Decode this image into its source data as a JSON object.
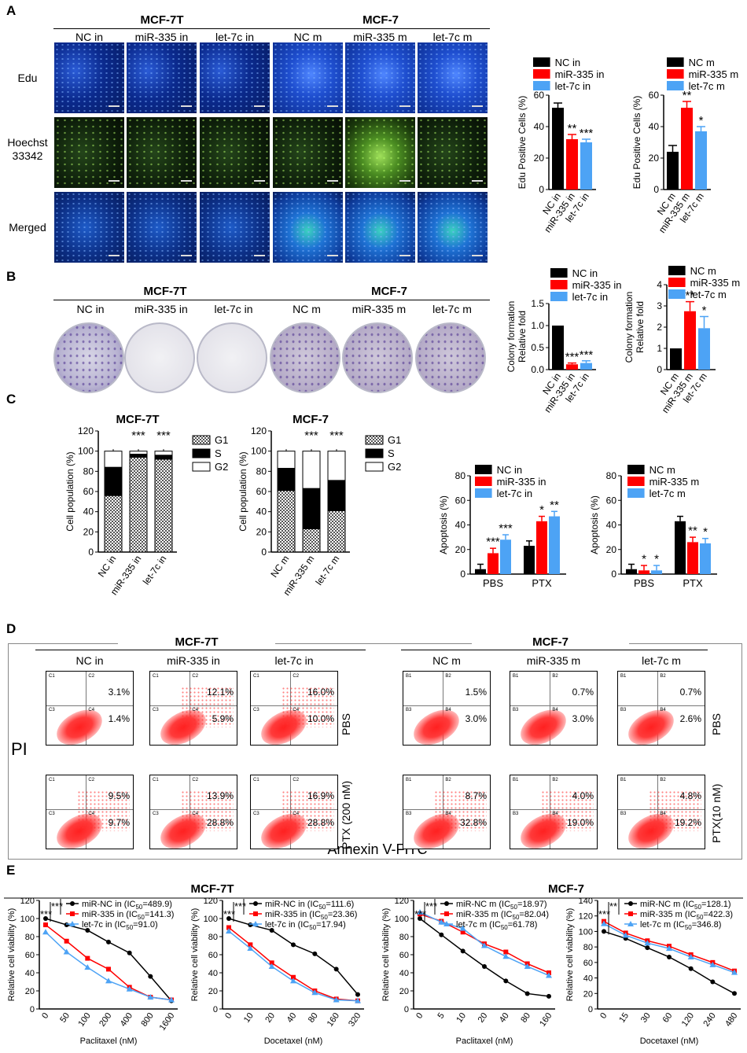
{
  "panels": {
    "A": "A",
    "B": "B",
    "C": "C",
    "D": "D",
    "E": "E"
  },
  "groups": {
    "mcf7t": "MCF-7T",
    "mcf7": "MCF-7"
  },
  "cols_in": [
    "NC in",
    "miR-335 in",
    "let-7c in"
  ],
  "cols_m": [
    "NC m",
    "miR-335 m",
    "let-7c m"
  ],
  "rowsA": [
    "Edu",
    "Hoechst\n33342",
    "Merged"
  ],
  "legend_in": [
    "NC in",
    "miR-335 in",
    "let-7c in"
  ],
  "legend_m": [
    "NC m",
    "miR-335 m",
    "let-7c m"
  ],
  "colors": {
    "black": "#000000",
    "red": "#ff0000",
    "blue": "#4da3f5"
  },
  "chart_data": [
    {
      "type": "bar",
      "title": "",
      "ylabel": "Edu Positive Cells (%)",
      "categories": [
        "NC in",
        "miR-335 in",
        "let-7c in"
      ],
      "values": [
        52,
        32,
        30
      ],
      "errors": [
        3,
        3,
        2
      ],
      "sig": [
        "",
        "**",
        "***"
      ],
      "ylim": [
        0,
        60
      ],
      "yticks": [
        0,
        20,
        40,
        60
      ]
    },
    {
      "type": "bar",
      "title": "",
      "ylabel": "Edu Positive Cells (%)",
      "categories": [
        "NC m",
        "miR-335 m",
        "let-7c m"
      ],
      "values": [
        24,
        52,
        37
      ],
      "errors": [
        4,
        4,
        3
      ],
      "sig": [
        "",
        "**",
        "*"
      ],
      "ylim": [
        0,
        60
      ],
      "yticks": [
        0,
        20,
        40,
        60
      ]
    },
    {
      "type": "bar",
      "title": "",
      "ylabel": "Colony formation\nRelative fold",
      "categories": [
        "NC in",
        "miR-335 in",
        "let-7c in"
      ],
      "values": [
        1.0,
        0.12,
        0.15
      ],
      "errors": [
        0,
        0.03,
        0.05
      ],
      "sig": [
        "",
        "***",
        "***"
      ],
      "ylim": [
        0,
        1.5
      ],
      "yticks": [
        "0.0",
        "0.5",
        "1.0",
        "1.5"
      ]
    },
    {
      "type": "bar",
      "title": "",
      "ylabel": "Colony formation\nRelative fold",
      "categories": [
        "NC m",
        "miR-335 m",
        "let-7c m"
      ],
      "values": [
        1.0,
        2.75,
        1.95
      ],
      "errors": [
        0,
        0.45,
        0.55
      ],
      "sig": [
        "",
        "**",
        "*"
      ],
      "ylim": [
        0,
        4
      ],
      "yticks": [
        0,
        1,
        2,
        3,
        4
      ]
    },
    {
      "type": "bar",
      "title": "MCF-7T",
      "ylabel": "Cell population (%)",
      "categories": [
        "NC in",
        "miR-335 in",
        "let-7c in"
      ],
      "series": [
        {
          "name": "G1",
          "values": [
            56,
            94,
            92
          ]
        },
        {
          "name": "S",
          "values": [
            28,
            3,
            4
          ]
        },
        {
          "name": "G2",
          "values": [
            16,
            3,
            4
          ]
        }
      ],
      "sig": [
        "",
        "***",
        "***"
      ],
      "ylim": [
        0,
        120
      ],
      "yticks": [
        0,
        20,
        40,
        60,
        80,
        100,
        120
      ]
    },
    {
      "type": "bar",
      "title": "MCF-7",
      "ylabel": "Cell population (%)",
      "categories": [
        "NC m",
        "miR-335 m",
        "let-7c m"
      ],
      "series": [
        {
          "name": "G1",
          "values": [
            61,
            23,
            41
          ]
        },
        {
          "name": "S",
          "values": [
            22,
            40,
            30
          ]
        },
        {
          "name": "G2",
          "values": [
            17,
            37,
            29
          ]
        }
      ],
      "sig": [
        "",
        "***",
        "***"
      ],
      "ylim": [
        0,
        120
      ],
      "yticks": [
        0,
        20,
        40,
        60,
        80,
        100,
        120
      ]
    },
    {
      "type": "bar",
      "title": "",
      "ylabel": "Apoptosis (%)",
      "categories": [
        "PBS",
        "PTX"
      ],
      "series": [
        {
          "name": "NC in",
          "values": [
            4,
            23
          ]
        },
        {
          "name": "miR-335 in",
          "values": [
            17,
            43
          ]
        },
        {
          "name": "let-7c in",
          "values": [
            28,
            47
          ]
        }
      ],
      "sig": {
        "PBS": [
          "",
          "***",
          "***"
        ],
        "PTX": [
          "",
          "*",
          "**"
        ]
      },
      "ylim": [
        0,
        80
      ],
      "yticks": [
        0,
        20,
        40,
        60,
        80
      ]
    },
    {
      "type": "bar",
      "title": "",
      "ylabel": "Apoptosis (%)",
      "categories": [
        "PBS",
        "PTX"
      ],
      "series": [
        {
          "name": "NC m",
          "values": [
            4,
            43
          ]
        },
        {
          "name": "miR-335 m",
          "values": [
            3,
            26
          ]
        },
        {
          "name": "let-7c m",
          "values": [
            3,
            25
          ]
        }
      ],
      "sig": {
        "PBS": [
          "",
          "*",
          "*"
        ],
        "PTX": [
          "",
          "**",
          "*"
        ]
      },
      "ylim": [
        0,
        80
      ],
      "yticks": [
        0,
        20,
        40,
        60,
        80
      ]
    },
    {
      "type": "line",
      "xlabel": "Paclitaxel (nM)",
      "ylabel": "Relative cell viability (%)",
      "x": [
        "0",
        "50",
        "100",
        "200",
        "400",
        "800",
        "1600"
      ],
      "series": [
        {
          "name": "miR-NC in (IC50=489.9)",
          "values": [
            100,
            93,
            87,
            74,
            62,
            36,
            9
          ]
        },
        {
          "name": "miR-335 in (IC50=141.3)",
          "values": [
            93,
            75,
            56,
            44,
            24,
            13,
            10
          ]
        },
        {
          "name": "let-7c in (IC50=91.0)",
          "values": [
            85,
            63,
            46,
            31,
            22,
            13,
            10
          ]
        }
      ],
      "ylim": [
        0,
        120
      ],
      "yticks": [
        0,
        20,
        40,
        60,
        80,
        100,
        120
      ]
    },
    {
      "type": "line",
      "xlabel": "Docetaxel (nM)",
      "ylabel": "Relative cell viability (%)",
      "x": [
        "0",
        "10",
        "20",
        "40",
        "80",
        "160",
        "320"
      ],
      "series": [
        {
          "name": "miR-NC in (IC50=111.6)",
          "values": [
            100,
            93,
            87,
            71,
            61,
            44,
            16
          ]
        },
        {
          "name": "miR-335 in (IC50=23.36)",
          "values": [
            90,
            71,
            51,
            35,
            20,
            11,
            9
          ]
        },
        {
          "name": "let-7c in (IC50=17.94)",
          "values": [
            86,
            67,
            47,
            31,
            18,
            10,
            9
          ]
        }
      ],
      "ylim": [
        0,
        120
      ],
      "yticks": [
        0,
        20,
        40,
        60,
        80,
        100,
        120
      ]
    },
    {
      "type": "line",
      "xlabel": "Paclitaxel (nM)",
      "ylabel": "Relative cell viability (%)",
      "x": [
        "0",
        "5",
        "10",
        "20",
        "40",
        "80",
        "160"
      ],
      "series": [
        {
          "name": "miR-NC m (IC50=18.97)",
          "values": [
            100,
            82,
            64,
            47,
            31,
            17,
            14
          ]
        },
        {
          "name": "miR-335 m (IC50=82.04)",
          "values": [
            105,
            97,
            85,
            72,
            63,
            50,
            40
          ]
        },
        {
          "name": "let-7c m (IC50=61.78)",
          "values": [
            107,
            96,
            89,
            70,
            58,
            47,
            37
          ]
        }
      ],
      "ylim": [
        0,
        120
      ],
      "yticks": [
        0,
        20,
        40,
        60,
        80,
        100,
        120
      ]
    },
    {
      "type": "line",
      "xlabel": "Docetaxel (nM)",
      "ylabel": "Relative cell viability (%)",
      "x": [
        "0",
        "15",
        "30",
        "60",
        "120",
        "240",
        "480"
      ],
      "series": [
        {
          "name": "miR-NC m (IC50=128.1)",
          "values": [
            100,
            91,
            79,
            67,
            52,
            35,
            20
          ]
        },
        {
          "name": "miR-335 m (IC50=422.3)",
          "values": [
            113,
            98,
            88,
            81,
            70,
            60,
            49
          ]
        },
        {
          "name": "let-7c m (IC50=346.8)",
          "values": [
            110,
            95,
            85,
            78,
            67,
            57,
            47
          ]
        }
      ],
      "ylim": [
        0,
        140
      ],
      "yticks": [
        0,
        20,
        40,
        60,
        80,
        100,
        120,
        140
      ]
    }
  ],
  "legend_C": [
    "G1",
    "S",
    "G2"
  ],
  "flowD": {
    "in": {
      "PBS": [
        [
          "3.1%",
          "1.4%"
        ],
        [
          "12.1%",
          "5.9%"
        ],
        [
          "16.0%",
          "10.0%"
        ]
      ],
      "PTX": [
        [
          "9.5%",
          "9.7%"
        ],
        [
          "13.9%",
          "28.8%"
        ],
        [
          "16.9%",
          "28.8%"
        ]
      ]
    },
    "m": {
      "PBS": [
        [
          "1.5%",
          "3.0%"
        ],
        [
          "0.7%",
          "3.0%"
        ],
        [
          "0.7%",
          "2.6%"
        ]
      ],
      "PTX": [
        [
          "8.7%",
          "32.8%"
        ],
        [
          "4.0%",
          "19.0%"
        ],
        [
          "4.8%",
          "19.2%"
        ]
      ]
    },
    "quad_in": [
      "C1",
      "C2",
      "C3",
      "C4"
    ],
    "quad_m": [
      "B1",
      "B2",
      "B3",
      "B4"
    ],
    "row_in": [
      "PBS",
      "PTX (200 nM)"
    ],
    "row_m": [
      "PBS",
      "PTX(10 nM)"
    ],
    "yaxis": "PI",
    "xaxis": "Annexin V-FITC"
  },
  "E": {
    "legend1": [
      {
        "pre": "miR-NC in  (IC",
        "sub": "50",
        "post": "=489.9)"
      },
      {
        "pre": "miR-335 in  (IC",
        "sub": "50",
        "post": "=141.3)"
      },
      {
        "pre": "let-7c in  (IC",
        "sub": "50",
        "post": "=91.0)"
      }
    ],
    "legend2": [
      {
        "pre": "miR-NC in  (IC",
        "sub": "50",
        "post": "=111.6)"
      },
      {
        "pre": "miR-335 in  (IC",
        "sub": "50",
        "post": "=23.36)"
      },
      {
        "pre": "let-7c in  (IC",
        "sub": "50",
        "post": "=17.94)"
      }
    ],
    "legend3": [
      {
        "pre": "miR-NC m  (IC",
        "sub": "50",
        "post": "=18.97)"
      },
      {
        "pre": "miR-335 m  (IC",
        "sub": "50",
        "post": "=82.04)"
      },
      {
        "pre": "let-7c m  (IC",
        "sub": "50",
        "post": "=61.78)"
      }
    ],
    "legend4": [
      {
        "pre": "miR-NC m  (IC",
        "sub": "50",
        "post": "=128.1)"
      },
      {
        "pre": "miR-335 m  (IC",
        "sub": "50",
        "post": "=422.3)"
      },
      {
        "pre": "let-7c m  (IC",
        "sub": "50",
        "post": "=346.8)"
      }
    ],
    "sig1": "***",
    "sig1b": "***",
    "sig2": "***",
    "sig2b": "***",
    "sig3": "***",
    "sig3b": "***",
    "sig4": "***",
    "sig4b": "**"
  }
}
